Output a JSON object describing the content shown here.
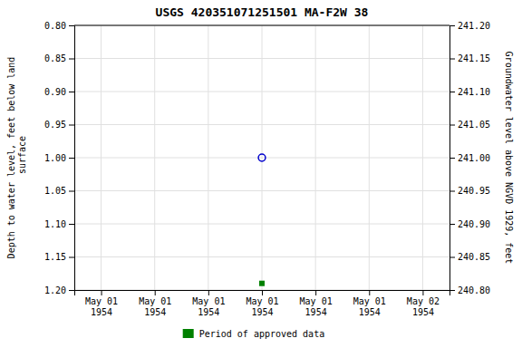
{
  "chart_data": {
    "type": "scatter",
    "title": "USGS 420351071251501 MA-F2W   38",
    "y_label": "Depth to water level, feet below land\n surface",
    "y2_label": "Groundwater level above NGVD 1929, feet",
    "categories": [
      "May 01\n1954",
      "May 01\n1954",
      "May 01\n1954",
      "May 01\n1954",
      "May 01\n1954",
      "May 01\n1954",
      "May 02\n1954"
    ],
    "series": [
      {
        "values": [
          null,
          null,
          null,
          1.0,
          null,
          null,
          null
        ],
        "color": "#0000cc",
        "marker": "circle-open"
      },
      {
        "name": "Period of approved data",
        "values": [
          null,
          null,
          null,
          1.19,
          null,
          null,
          null
        ],
        "color": "#008000",
        "marker": "square"
      }
    ],
    "ylim": [
      1.2,
      0.8
    ],
    "yticks": [
      {
        "value": 0.8,
        "label": "0.80"
      },
      {
        "value": 0.85,
        "label": "0.85"
      },
      {
        "value": 0.9,
        "label": "0.90"
      },
      {
        "value": 0.95,
        "label": "0.95"
      },
      {
        "value": 1.0,
        "label": "1.00"
      },
      {
        "value": 1.05,
        "label": "1.05"
      },
      {
        "value": 1.1,
        "label": "1.10"
      },
      {
        "value": 1.15,
        "label": "1.15"
      },
      {
        "value": 1.2,
        "label": "1.20"
      }
    ],
    "y2lim": [
      240.8,
      241.2
    ],
    "y2ticks": [
      {
        "value": 241.2,
        "label": "241.20"
      },
      {
        "value": 241.15,
        "label": "241.15"
      },
      {
        "value": 241.1,
        "label": "241.10"
      },
      {
        "value": 241.05,
        "label": "241.05"
      },
      {
        "value": 241.0,
        "label": "241.00"
      },
      {
        "value": 240.95,
        "label": "240.95"
      },
      {
        "value": 240.9,
        "label": "240.90"
      },
      {
        "value": 240.85,
        "label": "240.85"
      },
      {
        "value": 240.8,
        "label": "240.80"
      }
    ],
    "grid": true,
    "legend": "bottom"
  }
}
